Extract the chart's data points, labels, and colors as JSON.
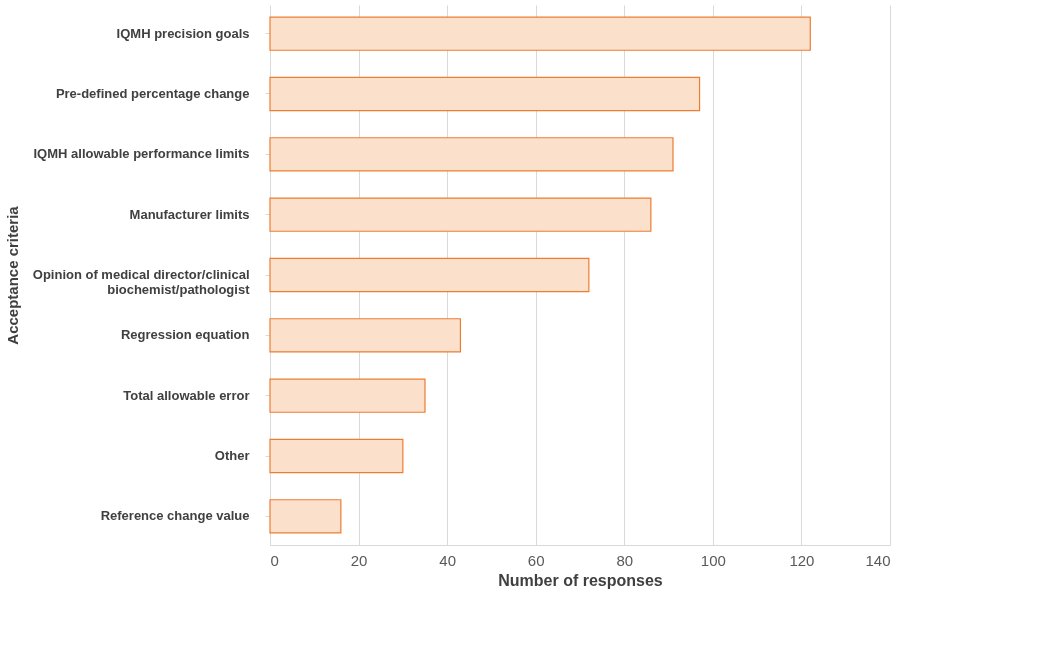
{
  "chart_data": {
    "type": "bar",
    "orientation": "horizontal",
    "categories": [
      "IQMH precision goals",
      "Pre-defined percentage change",
      "IQMH allowable performance limits",
      "Manufacturer limits",
      "Opinion of medical director/clinical biochemist/pathologist",
      "Regression equation",
      "Total allowable error",
      "Other",
      "Reference change value"
    ],
    "values": [
      122,
      97,
      91,
      86,
      72,
      43,
      35,
      30,
      16
    ],
    "color": "#ed7d31",
    "xlim": [
      0,
      140
    ],
    "xticks": [
      0,
      20,
      40,
      60,
      80,
      100,
      120,
      140
    ],
    "xlabel": "Number of responses",
    "ylabel": "Acceptance criteria",
    "grid": "x"
  }
}
